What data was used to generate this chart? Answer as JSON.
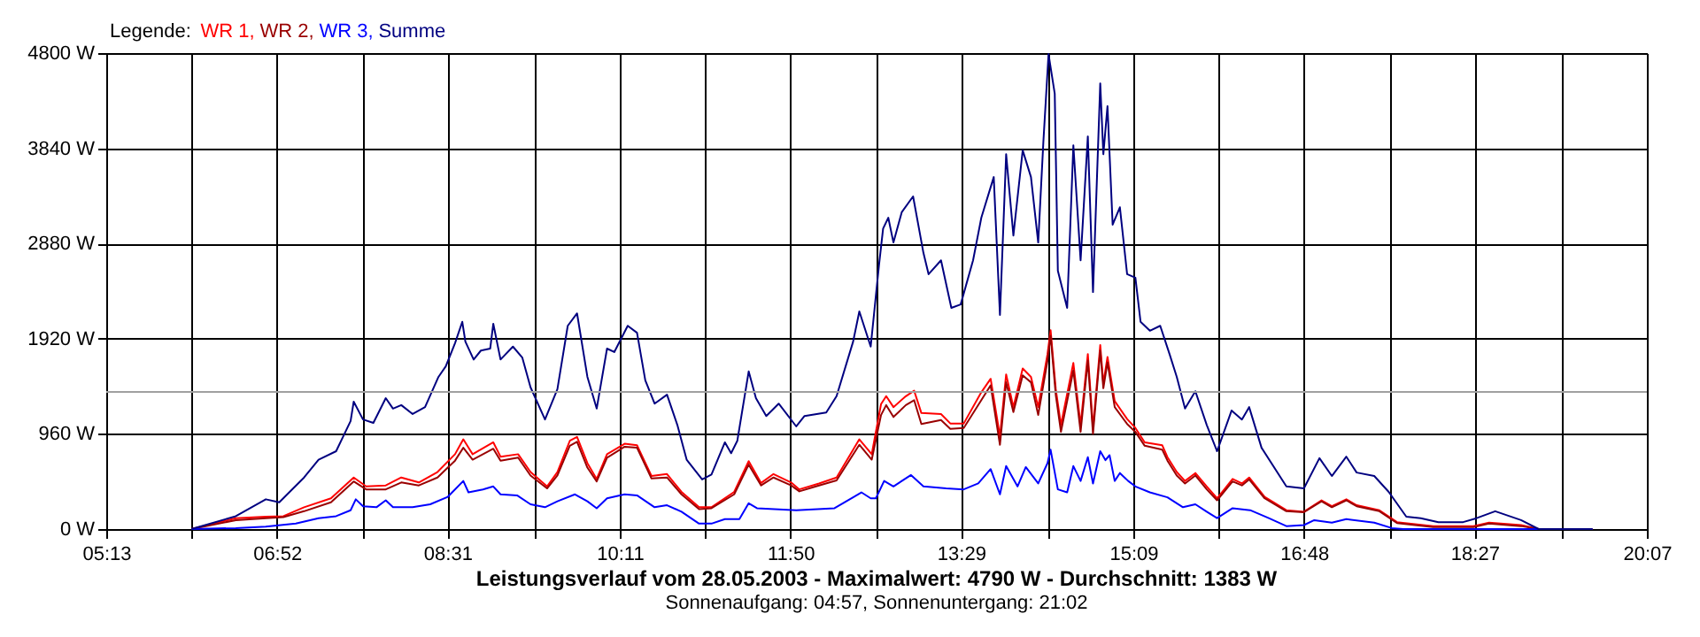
{
  "chart_data": {
    "type": "line",
    "title": "Leistungsverlauf vom 28.05.2003 - Maximalwert: 4790 W - Durchschnitt: 1383 W",
    "subtitle": "Sonnenaufgang: 04:57, Sonnenuntergang: 21:02",
    "legend_title": "Legende:",
    "legend": "top left",
    "grid": true,
    "marker": "none",
    "line_style": "solid",
    "xlim": [
      5.2167,
      20.1167
    ],
    "xticks": [
      {
        "value": 5.2167,
        "label": "05:13"
      },
      {
        "value": 6.0444,
        "label": null
      },
      {
        "value": 6.8667,
        "label": "06:52"
      },
      {
        "value": 7.7,
        "label": null
      },
      {
        "value": 8.5167,
        "label": "08:31"
      },
      {
        "value": 9.3556,
        "label": null
      },
      {
        "value": 10.1833,
        "label": "10:11"
      },
      {
        "value": 11.0111,
        "label": null
      },
      {
        "value": 11.8333,
        "label": "11:50"
      },
      {
        "value": 12.6667,
        "label": null
      },
      {
        "value": 13.4833,
        "label": "13:29"
      },
      {
        "value": 14.3222,
        "label": null
      },
      {
        "value": 15.15,
        "label": "15:09"
      },
      {
        "value": 15.9778,
        "label": null
      },
      {
        "value": 16.8,
        "label": "16:48"
      },
      {
        "value": 17.6333,
        "label": null
      },
      {
        "value": 18.45,
        "label": "18:27"
      },
      {
        "value": 19.2889,
        "label": null
      },
      {
        "value": 20.1167,
        "label": "20:07"
      }
    ],
    "ylim": [
      0,
      4800
    ],
    "yticks": [
      {
        "value": 0,
        "label": "0 W"
      },
      {
        "value": 960,
        "label": "960 W"
      },
      {
        "value": 1920,
        "label": "1920 W"
      },
      {
        "value": 2880,
        "label": "2880 W"
      },
      {
        "value": 3840,
        "label": "3840 W"
      },
      {
        "value": 4800,
        "label": "4800 W"
      }
    ],
    "ref_lines": [
      {
        "axis": "y",
        "value": 1383,
        "color": "#a0a0a0"
      }
    ],
    "series": [
      {
        "name": "WR 1,",
        "color": "#ff0000",
        "x": [
          6.04,
          6.47,
          6.76,
          6.93,
          7.13,
          7.39,
          7.61,
          7.73,
          7.92,
          8.07,
          8.24,
          8.42,
          8.59,
          8.67,
          8.76,
          8.96,
          9.03,
          9.2,
          9.32,
          9.48,
          9.58,
          9.7,
          9.77,
          9.87,
          9.96,
          10.06,
          10.23,
          10.35,
          10.49,
          10.64,
          10.78,
          10.95,
          11.07,
          11.29,
          11.43,
          11.55,
          11.67,
          11.84,
          11.92,
          12.11,
          12.28,
          12.5,
          12.62,
          12.71,
          12.76,
          12.83,
          12.95,
          13.03,
          13.1,
          13.29,
          13.38,
          13.51,
          13.68,
          13.77,
          13.86,
          13.92,
          13.99,
          14.08,
          14.16,
          14.23,
          14.32,
          14.35,
          14.4,
          14.45,
          14.57,
          14.64,
          14.71,
          14.76,
          14.83,
          14.86,
          14.9,
          14.97,
          15.09,
          15.17,
          15.26,
          15.43,
          15.48,
          15.57,
          15.65,
          15.75,
          15.86,
          15.96,
          16.11,
          16.2,
          16.27,
          16.42,
          16.63,
          16.8,
          16.97,
          17.07,
          17.21,
          17.31,
          17.53,
          17.7,
          18.05,
          18.44,
          18.59,
          18.9,
          19.07,
          19.59
        ],
        "values": [
          0,
          110,
          125,
          130,
          220,
          310,
          520,
          430,
          440,
          520,
          470,
          575,
          755,
          905,
          755,
          875,
          730,
          755,
          575,
          430,
          575,
          890,
          930,
          665,
          505,
          755,
          860,
          845,
          535,
          555,
          375,
          220,
          220,
          375,
          685,
          465,
          555,
          470,
          400,
          460,
          520,
          905,
          755,
          1260,
          1340,
          1230,
          1340,
          1395,
          1170,
          1160,
          1065,
          1065,
          1380,
          1515,
          935,
          1560,
          1230,
          1620,
          1535,
          1230,
          1765,
          2005,
          1410,
          1050,
          1675,
          1050,
          1765,
          1020,
          1855,
          1470,
          1735,
          1290,
          1110,
          1020,
          875,
          845,
          725,
          575,
          485,
          565,
          430,
          310,
          505,
          460,
          520,
          325,
          190,
          175,
          290,
          230,
          300,
          240,
          190,
          70,
          30,
          30,
          65,
          40,
          0,
          0
        ]
      },
      {
        "name": "WR 2,",
        "color": "#990000",
        "x": [
          6.04,
          6.47,
          6.76,
          6.93,
          7.13,
          7.39,
          7.61,
          7.73,
          7.92,
          8.07,
          8.24,
          8.42,
          8.59,
          8.67,
          8.76,
          8.96,
          9.03,
          9.2,
          9.32,
          9.48,
          9.58,
          9.7,
          9.77,
          9.87,
          9.96,
          10.06,
          10.23,
          10.35,
          10.49,
          10.64,
          10.78,
          10.95,
          11.07,
          11.29,
          11.43,
          11.55,
          11.67,
          11.84,
          11.92,
          12.11,
          12.28,
          12.5,
          12.62,
          12.71,
          12.76,
          12.83,
          12.95,
          13.03,
          13.1,
          13.29,
          13.38,
          13.51,
          13.68,
          13.77,
          13.86,
          13.92,
          13.99,
          14.08,
          14.16,
          14.23,
          14.32,
          14.35,
          14.4,
          14.45,
          14.57,
          14.64,
          14.71,
          14.76,
          14.83,
          14.86,
          14.9,
          14.97,
          15.09,
          15.17,
          15.26,
          15.43,
          15.48,
          15.57,
          15.65,
          15.75,
          15.86,
          15.96,
          16.11,
          16.2,
          16.27,
          16.42,
          16.63,
          16.8,
          16.97,
          17.07,
          17.21,
          17.31,
          17.53,
          17.7,
          18.05,
          18.44,
          18.59,
          18.9,
          19.07,
          19.59
        ],
        "values": [
          0,
          90,
          110,
          120,
          180,
          270,
          480,
          400,
          400,
          470,
          440,
          520,
          690,
          820,
          700,
          810,
          690,
          720,
          540,
          410,
          540,
          840,
          880,
          620,
          480,
          720,
          830,
          820,
          510,
          520,
          350,
          200,
          210,
          350,
          650,
          440,
          520,
          440,
          380,
          440,
          490,
          850,
          700,
          1150,
          1250,
          1130,
          1250,
          1300,
          1060,
          1100,
          1010,
          1020,
          1300,
          1450,
          850,
          1480,
          1180,
          1550,
          1480,
          1150,
          1700,
          1950,
          1350,
          980,
          1600,
          980,
          1700,
          960,
          1800,
          1420,
          1680,
          1230,
          1060,
          980,
          840,
          800,
          690,
          540,
          460,
          540,
          400,
          290,
          480,
          440,
          500,
          310,
          180,
          170,
          280,
          220,
          290,
          230,
          180,
          60,
          20,
          20,
          55,
          30,
          0,
          0
        ]
      },
      {
        "name": "WR 3,",
        "color": "#0000ff",
        "x": [
          6.04,
          6.47,
          6.76,
          7.05,
          7.27,
          7.44,
          7.58,
          7.63,
          7.7,
          7.83,
          7.92,
          7.99,
          8.18,
          8.35,
          8.52,
          8.67,
          8.72,
          8.86,
          8.96,
          9.03,
          9.19,
          9.32,
          9.46,
          9.58,
          9.75,
          9.87,
          9.96,
          10.06,
          10.23,
          10.35,
          10.52,
          10.64,
          10.78,
          10.95,
          11.07,
          11.2,
          11.34,
          11.43,
          11.51,
          11.89,
          12.26,
          12.44,
          12.52,
          12.61,
          12.66,
          12.74,
          12.83,
          13.0,
          13.12,
          13.34,
          13.51,
          13.65,
          13.77,
          13.86,
          13.92,
          14.03,
          14.11,
          14.23,
          14.32,
          14.35,
          14.42,
          14.51,
          14.57,
          14.64,
          14.71,
          14.76,
          14.83,
          14.88,
          14.92,
          14.97,
          15.02,
          15.1,
          15.17,
          15.31,
          15.48,
          15.63,
          15.75,
          15.86,
          15.96,
          16.11,
          16.28,
          16.46,
          16.63,
          16.8,
          16.9,
          17.07,
          17.21,
          17.48,
          17.65,
          17.76,
          19.59
        ],
        "values": [
          0,
          10,
          25,
          55,
          110,
          130,
          190,
          300,
          230,
          220,
          290,
          220,
          220,
          250,
          325,
          485,
          370,
          400,
          430,
          350,
          340,
          250,
          220,
          280,
          350,
          280,
          210,
          310,
          350,
          340,
          220,
          240,
          175,
          55,
          55,
          100,
          100,
          260,
          210,
          190,
          210,
          320,
          370,
          310,
          310,
          485,
          430,
          545,
          430,
          410,
          400,
          460,
          605,
          350,
          635,
          430,
          625,
          460,
          665,
          800,
          400,
          370,
          635,
          485,
          725,
          460,
          785,
          695,
          745,
          485,
          565,
          485,
          430,
          370,
          320,
          220,
          250,
          175,
          110,
          210,
          190,
          110,
          30,
          40,
          90,
          65,
          100,
          65,
          10,
          0,
          0
        ]
      },
      {
        "name": "Summe",
        "color": "#000080",
        "x": [
          6.04,
          6.47,
          6.76,
          6.89,
          7.13,
          7.27,
          7.44,
          7.58,
          7.61,
          7.7,
          7.8,
          7.92,
          7.99,
          8.07,
          8.18,
          8.3,
          8.43,
          8.5,
          8.59,
          8.66,
          8.69,
          8.77,
          8.84,
          8.93,
          8.96,
          9.03,
          9.15,
          9.24,
          9.32,
          9.46,
          9.58,
          9.68,
          9.77,
          9.87,
          9.96,
          10.06,
          10.13,
          10.26,
          10.35,
          10.43,
          10.52,
          10.64,
          10.74,
          10.83,
          10.98,
          11.07,
          11.2,
          11.26,
          11.32,
          11.43,
          11.5,
          11.6,
          11.72,
          11.89,
          11.97,
          12.18,
          12.28,
          12.44,
          12.5,
          12.61,
          12.69,
          12.73,
          12.78,
          12.83,
          12.91,
          13.02,
          13.12,
          13.17,
          13.29,
          13.39,
          13.48,
          13.6,
          13.68,
          13.8,
          13.86,
          13.92,
          13.99,
          14.08,
          14.16,
          14.23,
          14.28,
          14.33,
          14.39,
          14.42,
          14.51,
          14.57,
          14.64,
          14.71,
          14.76,
          14.83,
          14.86,
          14.9,
          14.95,
          15.02,
          15.09,
          15.17,
          15.22,
          15.31,
          15.41,
          15.5,
          15.57,
          15.65,
          15.75,
          15.86,
          15.96,
          16.1,
          16.2,
          16.27,
          16.39,
          16.63,
          16.8,
          16.95,
          17.07,
          17.21,
          17.31,
          17.48,
          17.62,
          17.79,
          17.93,
          18.1,
          18.34,
          18.47,
          18.65,
          18.9,
          19.07,
          19.59
        ],
        "values": [
          0,
          130,
          300,
          270,
          520,
          700,
          785,
          1090,
          1285,
          1105,
          1070,
          1320,
          1215,
          1250,
          1160,
          1230,
          1535,
          1640,
          1875,
          2090,
          1890,
          1710,
          1800,
          1820,
          2070,
          1710,
          1840,
          1730,
          1430,
          1105,
          1410,
          2050,
          2175,
          1535,
          1215,
          1820,
          1785,
          2050,
          1980,
          1500,
          1265,
          1355,
          1050,
          700,
          500,
          550,
          875,
          765,
          890,
          1590,
          1320,
          1140,
          1265,
          1035,
          1140,
          1175,
          1340,
          1890,
          2195,
          1840,
          2660,
          3030,
          3140,
          2890,
          3195,
          3355,
          2785,
          2570,
          2710,
          2230,
          2265,
          2710,
          3140,
          3550,
          2160,
          3780,
          2960,
          3820,
          3550,
          2890,
          3905,
          4790,
          4390,
          2605,
          2230,
          3870,
          2710,
          3960,
          2390,
          4495,
          3780,
          4265,
          3070,
          3245,
          2570,
          2535,
          2090,
          2000,
          2050,
          1765,
          1535,
          1215,
          1390,
          1050,
          785,
          1195,
          1105,
          1230,
          820,
          430,
          410,
          715,
          535,
          730,
          570,
          535,
          375,
          125,
          110,
          70,
          70,
          110,
          180,
          90,
          0,
          0
        ]
      }
    ]
  }
}
